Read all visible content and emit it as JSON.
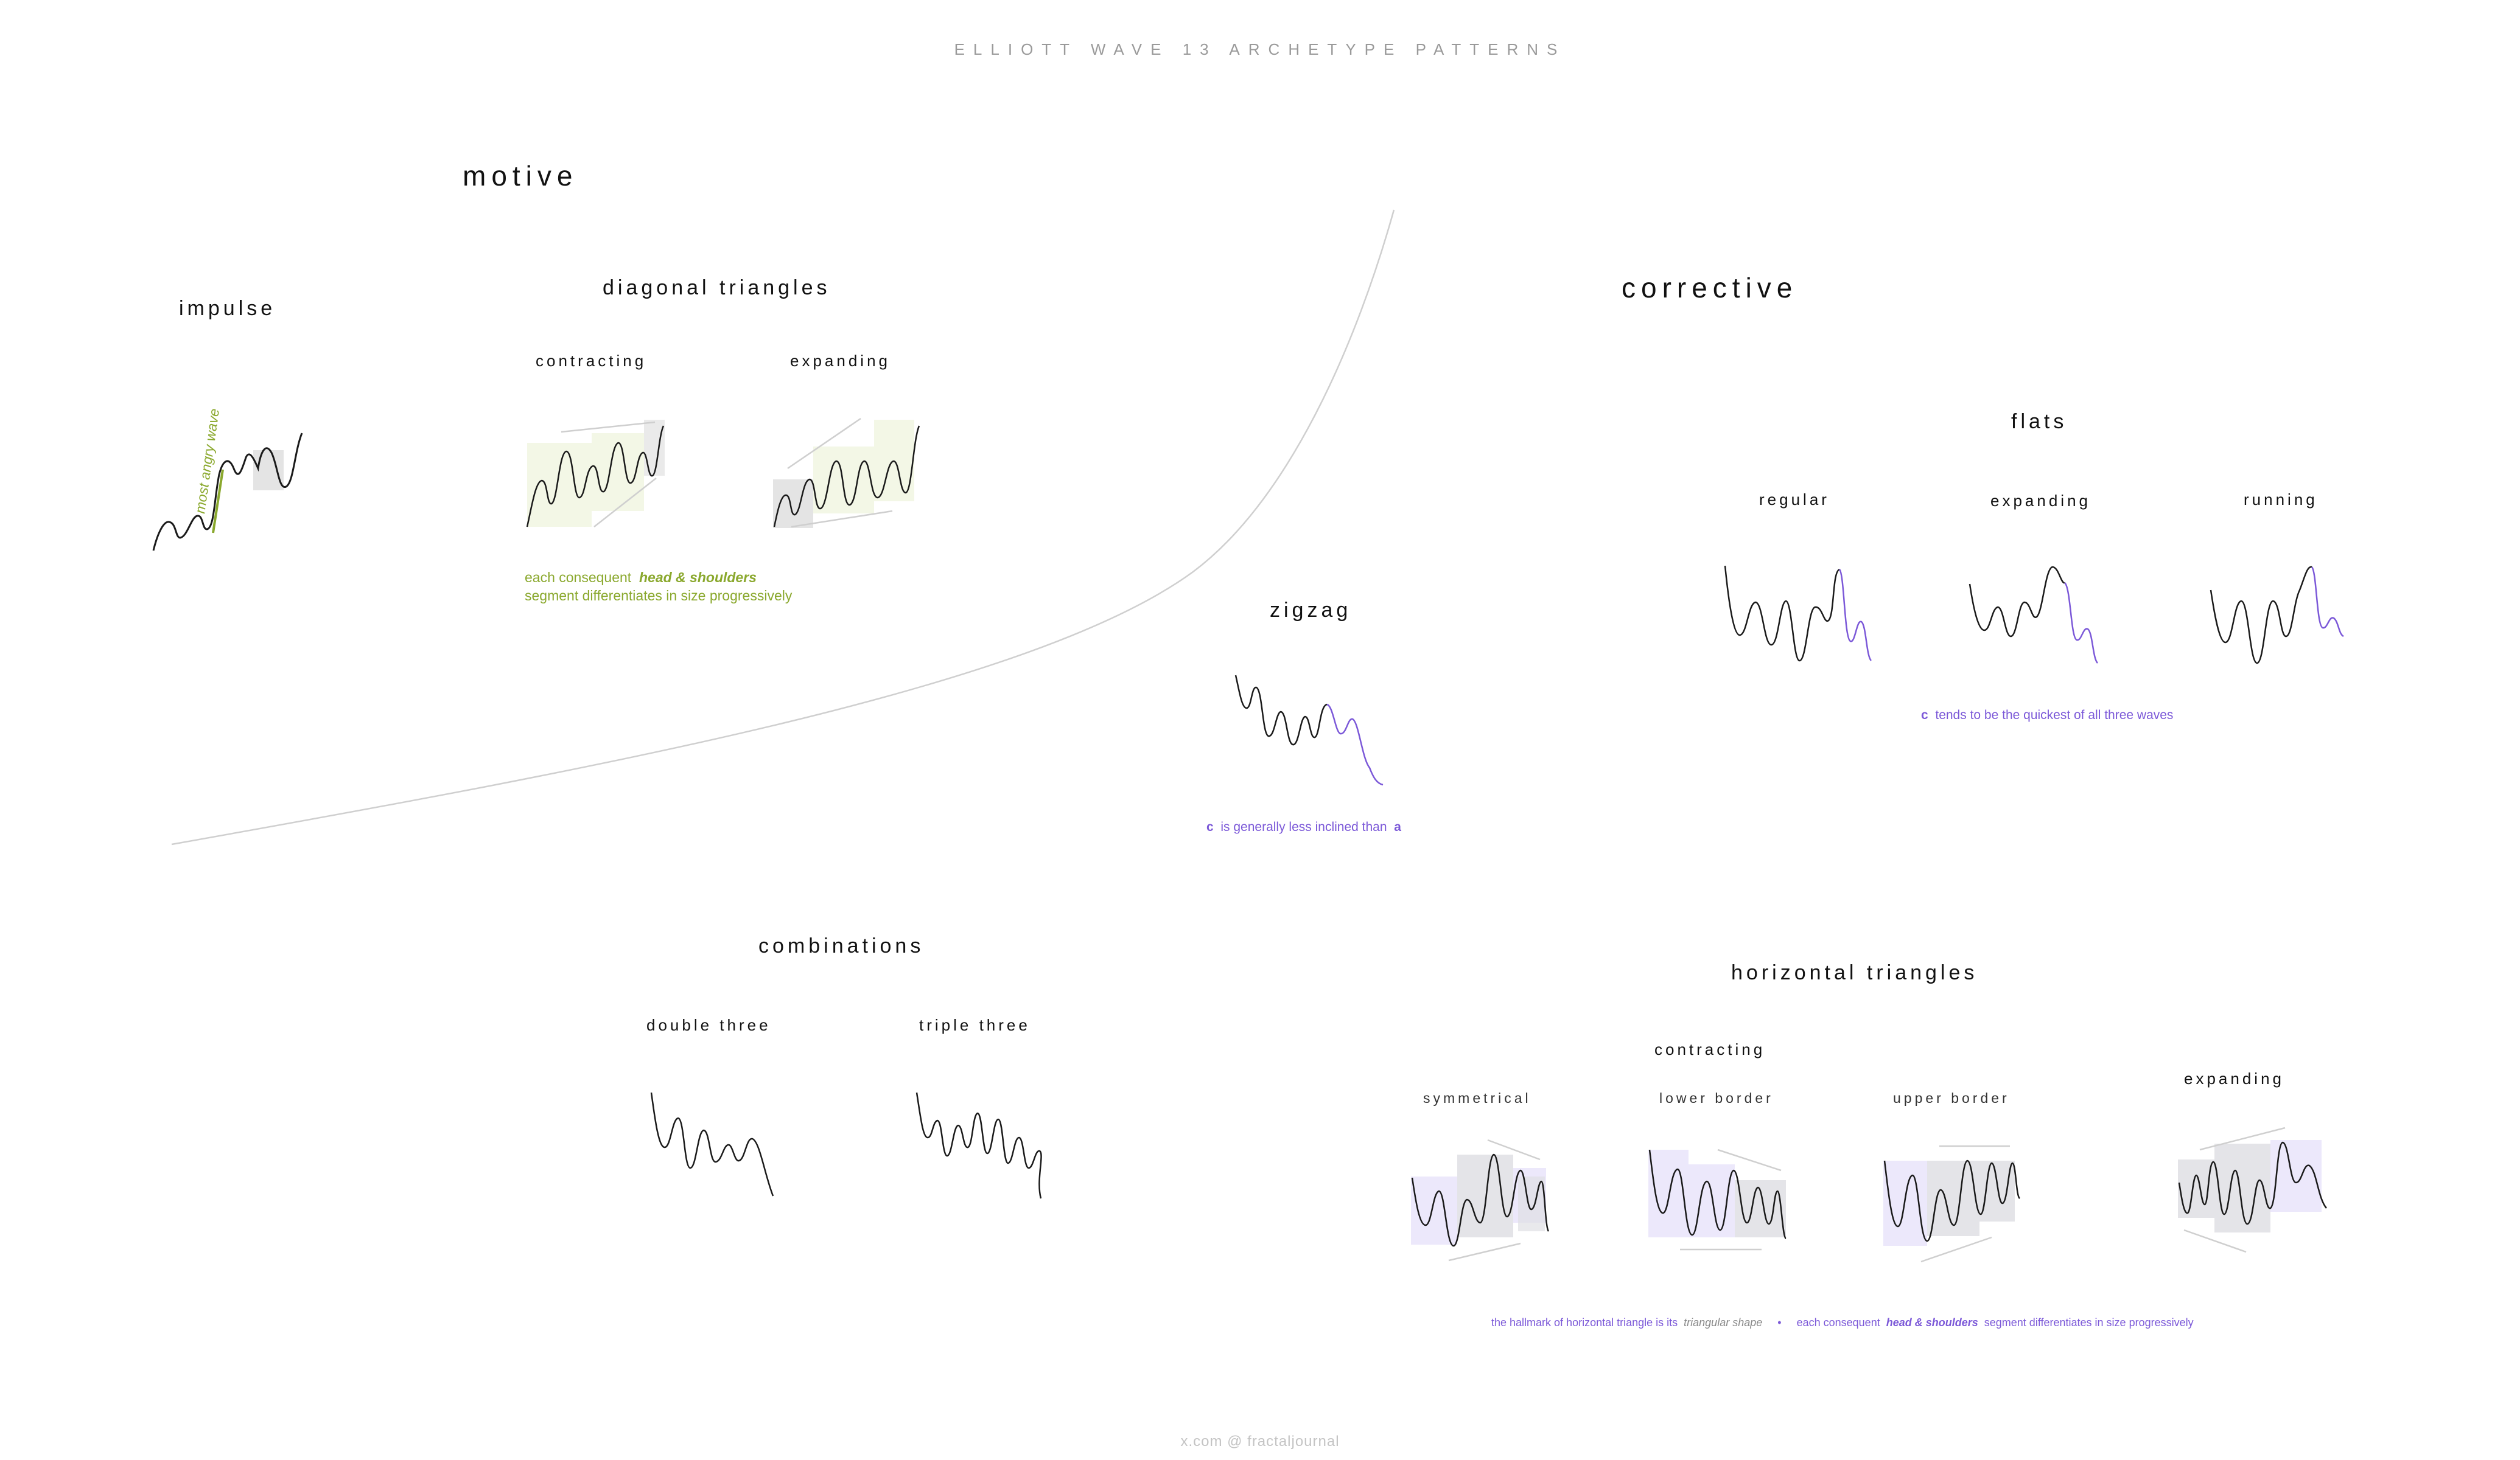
{
  "title": "ELLIOTT WAVE 13 ARCHETYPE PATTERNS",
  "motive": {
    "label": "motive",
    "impulse": {
      "label": "impulse",
      "annotation": "most angry wave"
    },
    "diagonal_triangles": {
      "label": "diagonal triangles",
      "contracting": "contracting",
      "expanding": "expanding",
      "note_prefix": "each consequent",
      "note_emphasis": "head & shoulders",
      "note_line2": "segment differentiates in size progressively"
    }
  },
  "corrective": {
    "label": "corrective",
    "zigzag": {
      "label": "zigzag",
      "note_c": "c",
      "note_text": "is generally less inclined than",
      "note_a": "a"
    },
    "flats": {
      "label": "flats",
      "regular": "regular",
      "expanding": "expanding",
      "running": "running",
      "note_c": "c",
      "note_text": "tends to be the quickest of all three waves"
    },
    "combinations": {
      "label": "combinations",
      "double_three": "double three",
      "triple_three": "triple three"
    },
    "horizontal_triangles": {
      "label": "horizontal triangles",
      "contracting": "contracting",
      "symmetrical": "symmetrical",
      "lower_border": "lower border",
      "upper_border": "upper border",
      "expanding": "expanding",
      "note_part1": "the hallmark of horizontal triangle is its",
      "note_shape": "triangular shape",
      "note_sep": "•",
      "note_part2": "each consequent",
      "note_emphasis": "head & shoulders",
      "note_part3": "segment differentiates in size progressively"
    }
  },
  "footer": "x.com  @  fractaljournal",
  "colors": {
    "green": "#8aa82d",
    "green_fill": "#f3f7e6",
    "purple": "#7b58d8",
    "purple_fill": "#ebe7fb",
    "gray_fill": "#e4e4e4",
    "ink": "#1a1a1a",
    "divider": "#cfcfcf"
  }
}
